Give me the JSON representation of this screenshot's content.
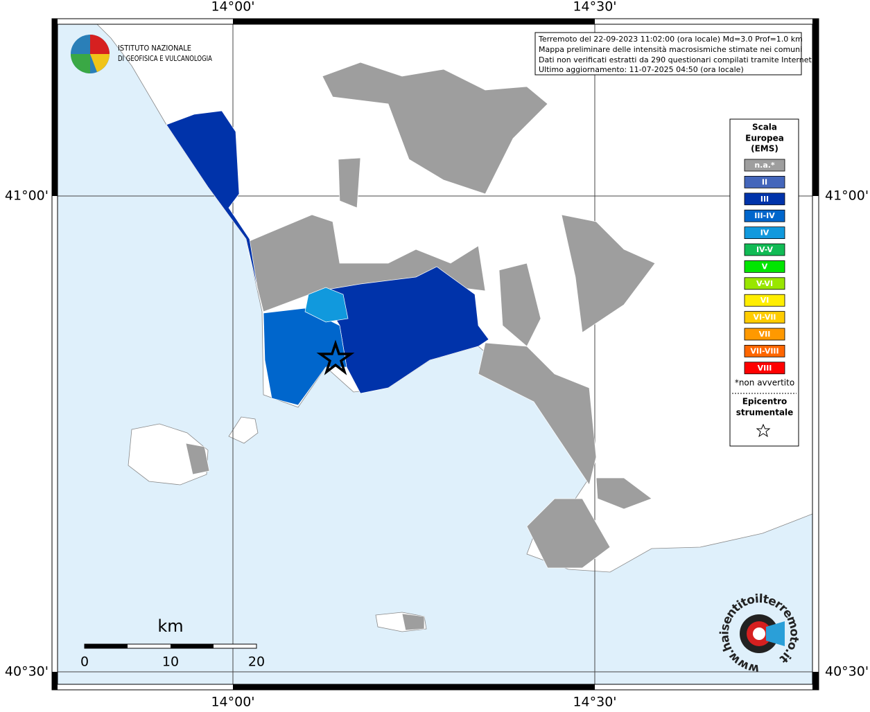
{
  "coordinates": {
    "top": [
      "14°00'",
      "14°30'"
    ],
    "bottom": [
      "14°00'",
      "14°30'"
    ],
    "left": [
      "41°00'",
      "40°30'"
    ],
    "right": [
      "41°00'",
      "40°30'"
    ]
  },
  "logo": [
    "ISTITUTO NAZIONALE",
    "DI GEOFISICA E VULCANOLOGIA"
  ],
  "info": [
    "Terremoto del 22-09-2023 11:02:00 (ora locale) Md=3.0 Prof=1.0 km",
    "Mappa preliminare delle intensità macrosismiche stimate nei comuni",
    "Dati non verificati estratti da 290 questionari compilati tramite Internet.",
    "Ultimo aggiornamento: 11-07-2025 04:50 (ora locale)"
  ],
  "legend": {
    "title": [
      "Scala",
      "Europea",
      "(EMS)"
    ],
    "items": [
      {
        "label": "n.a.*",
        "color": "#9e9e9e"
      },
      {
        "label": "II",
        "color": "#4466bb"
      },
      {
        "label": "III",
        "color": "#0033aa"
      },
      {
        "label": "III-IV",
        "color": "#0066cc"
      },
      {
        "label": "IV",
        "color": "#1199dd"
      },
      {
        "label": "IV-V",
        "color": "#11bb55"
      },
      {
        "label": "V",
        "color": "#00e600"
      },
      {
        "label": "V-VI",
        "color": "#99e600"
      },
      {
        "label": "VI",
        "color": "#ffee00"
      },
      {
        "label": "VI-VII",
        "color": "#ffcc00"
      },
      {
        "label": "VII",
        "color": "#ff9900"
      },
      {
        "label": "VII-VIII",
        "color": "#ff6600"
      },
      {
        "label": "VIII",
        "color": "#ff0000"
      }
    ],
    "note": "*non avvertito",
    "epicenter": [
      "Epicentro",
      "strumentale"
    ]
  },
  "scale_bar": {
    "unit": "km",
    "labels": [
      "0",
      "10",
      "20"
    ]
  },
  "watermark": "www.haisentitoilterremoto.it"
}
